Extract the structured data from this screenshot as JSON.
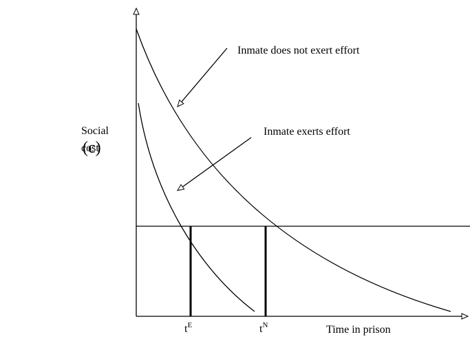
{
  "panel_label": "(c)",
  "y_axis_label": [
    "Social",
    "cost"
  ],
  "annotations": [
    "Inmate does not exert effort",
    "Inmate exerts effort"
  ],
  "x_labels": [
    {
      "text": "t",
      "sup": "E"
    },
    {
      "text": "t",
      "sup": "N"
    }
  ],
  "x_axis_label": "Time in prison"
}
